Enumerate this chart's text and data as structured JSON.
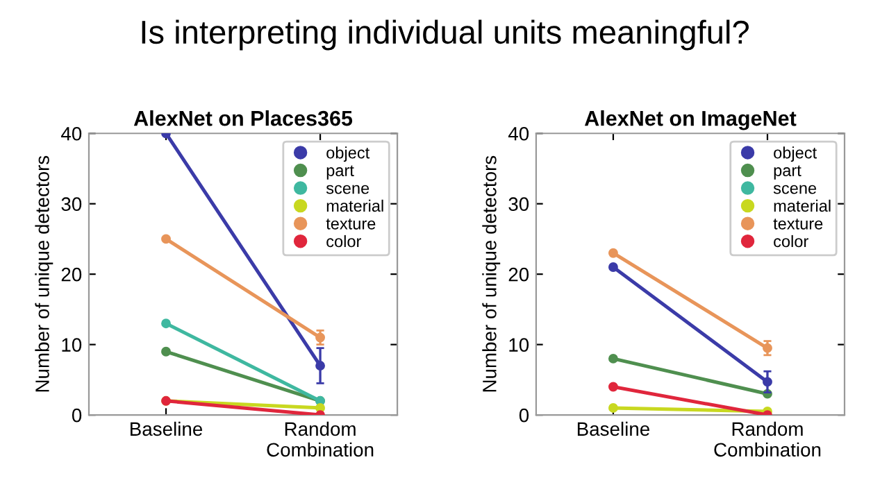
{
  "chart_data": [
    {
      "type": "line",
      "title": "AlexNet on Places365",
      "ylabel": "Number of unique detectors",
      "annotations": [
        "Is interpreting individual units meaningful?"
      ],
      "categories": [
        "Baseline",
        "Random\nCombination"
      ],
      "ylim": [
        0,
        40
      ],
      "yticks": [
        0,
        10,
        20,
        30,
        40
      ],
      "legend": "top right",
      "grid": false,
      "marker": "circle",
      "line_style": "solid",
      "series": [
        {
          "name": "object",
          "color": "#3b3ba8",
          "values": [
            40,
            7
          ],
          "errors": [
            null,
            2.5
          ]
        },
        {
          "name": "part",
          "color": "#4f8f4f",
          "values": [
            9,
            2
          ]
        },
        {
          "name": "scene",
          "color": "#3fb8a0",
          "values": [
            13,
            2
          ]
        },
        {
          "name": "material",
          "color": "#c8d820",
          "values": [
            2,
            1
          ]
        },
        {
          "name": "texture",
          "color": "#e8955a",
          "values": [
            25,
            11
          ],
          "errors": [
            null,
            1
          ]
        },
        {
          "name": "color",
          "color": "#e0263c",
          "values": [
            2,
            0
          ]
        }
      ]
    },
    {
      "type": "line",
      "title": "AlexNet on ImageNet",
      "ylabel": "Number of unique detectors",
      "categories": [
        "Baseline",
        "Random\nCombination"
      ],
      "ylim": [
        0,
        40
      ],
      "yticks": [
        0,
        10,
        20,
        30,
        40
      ],
      "legend": "top right",
      "grid": false,
      "marker": "circle",
      "line_style": "solid",
      "series": [
        {
          "name": "object",
          "color": "#3b3ba8",
          "values": [
            21,
            4.7
          ],
          "errors": [
            null,
            1.5
          ]
        },
        {
          "name": "part",
          "color": "#4f8f4f",
          "values": [
            8,
            3
          ]
        },
        {
          "name": "scene",
          "color": "#3fb8a0",
          "values": [
            null,
            null
          ]
        },
        {
          "name": "material",
          "color": "#c8d820",
          "values": [
            1,
            0.5
          ]
        },
        {
          "name": "texture",
          "color": "#e8955a",
          "values": [
            23,
            9.5
          ],
          "errors": [
            null,
            1
          ]
        },
        {
          "name": "color",
          "color": "#e0263c",
          "values": [
            4,
            0
          ]
        }
      ]
    }
  ]
}
